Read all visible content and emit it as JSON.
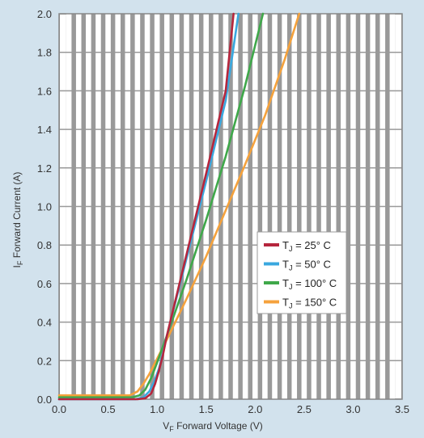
{
  "chart_data": {
    "type": "line",
    "xlabel_main": "V",
    "xlabel_sub": "F",
    "xlabel_rest": " Forward Voltage (V)",
    "ylabel_main": "I",
    "ylabel_sub": "F",
    "ylabel_rest": " Forward Current (A)",
    "xlim": [
      0,
      3.5
    ],
    "ylim": [
      0,
      2.0
    ],
    "x_ticks": [
      0.0,
      0.5,
      1.0,
      1.5,
      2.0,
      2.5,
      3.0,
      3.5
    ],
    "x_tick_labels": [
      "0.0",
      "0.5",
      "1.0",
      "1.5",
      "2.0",
      "2.5",
      "3.0",
      "3.5"
    ],
    "y_ticks": [
      0.0,
      0.2,
      0.4,
      0.6,
      0.8,
      1.0,
      1.2,
      1.4,
      1.6,
      1.8,
      2.0
    ],
    "y_tick_labels": [
      "0.0",
      "0.2",
      "0.4",
      "0.6",
      "0.8",
      "1.0",
      "1.2",
      "1.4",
      "1.6",
      "1.8",
      "2.0"
    ],
    "grid": true,
    "legend_position": "right",
    "series": [
      {
        "name": "T_J = 25° C",
        "legend": {
          "pre": "T",
          "sub": "J",
          "post": " = 25° C"
        },
        "color": "#b5263d",
        "x": [
          0.0,
          0.8,
          0.88,
          0.94,
          0.98,
          1.02,
          1.06,
          1.1,
          1.3,
          1.5,
          1.7,
          1.78
        ],
        "y": [
          0.0,
          0.0,
          0.005,
          0.03,
          0.08,
          0.15,
          0.23,
          0.33,
          0.75,
          1.17,
          1.6,
          2.0
        ]
      },
      {
        "name": "T_J = 50° C",
        "legend": {
          "pre": "T",
          "sub": "J",
          "post": " = 50° C"
        },
        "color": "#3aa8df",
        "x": [
          0.0,
          0.78,
          0.86,
          0.92,
          0.97,
          1.02,
          1.06,
          1.1,
          1.3,
          1.5,
          1.7,
          1.83
        ],
        "y": [
          0.0,
          0.0,
          0.01,
          0.04,
          0.09,
          0.16,
          0.24,
          0.33,
          0.73,
          1.13,
          1.55,
          2.0
        ]
      },
      {
        "name": "T_J = 100° C",
        "legend": {
          "pre": "T",
          "sub": "J",
          "post": " = 100° C"
        },
        "color": "#3fa84a",
        "x": [
          0.0,
          0.75,
          0.82,
          0.88,
          0.94,
          1.0,
          1.05,
          1.1,
          1.3,
          1.5,
          1.7,
          1.9,
          2.08
        ],
        "y": [
          0.01,
          0.01,
          0.02,
          0.05,
          0.11,
          0.19,
          0.26,
          0.33,
          0.62,
          0.93,
          1.26,
          1.63,
          2.0
        ]
      },
      {
        "name": "T_J = 150° C",
        "legend": {
          "pre": "T",
          "sub": "J",
          "post": " = 150° C"
        },
        "color": "#f5a23c",
        "x": [
          0.0,
          0.72,
          0.8,
          0.86,
          0.92,
          0.98,
          1.04,
          1.1,
          1.3,
          1.5,
          1.7,
          1.9,
          2.1,
          2.3,
          2.45
        ],
        "y": [
          0.02,
          0.02,
          0.04,
          0.08,
          0.13,
          0.19,
          0.25,
          0.31,
          0.52,
          0.74,
          0.98,
          1.22,
          1.47,
          1.76,
          2.0
        ]
      }
    ]
  }
}
